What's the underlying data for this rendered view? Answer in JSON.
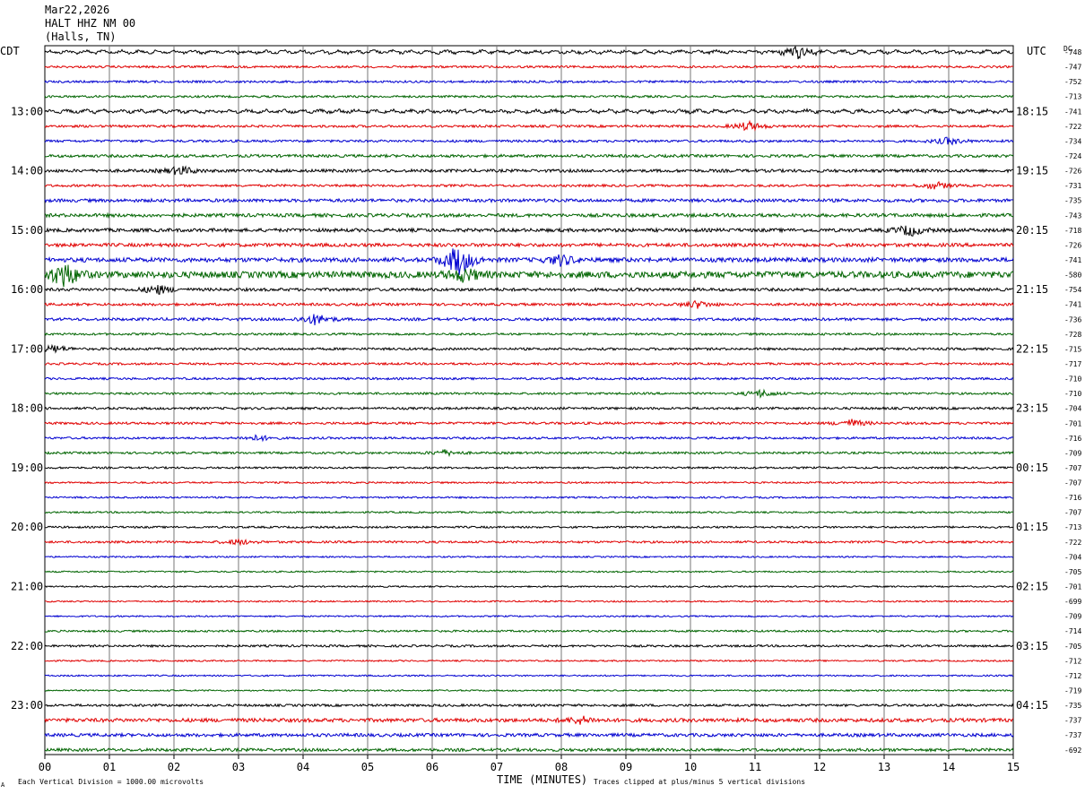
{
  "header": {
    "date": "Mar22,2026",
    "station": "HALT HHZ NM 00",
    "location": "(Halls, TN)"
  },
  "labels": {
    "left_tz": "CDT",
    "right_tz": "UTC",
    "dc": "DC",
    "xlabel": "TIME (MINUTES)",
    "footer_left": "Each Vertical Division = 1000.00 microvolts",
    "footer_right": "Traces clipped at plus/minus 5 vertical divisions",
    "corner_mark": "A"
  },
  "chart_data": {
    "type": "line",
    "title": "HALT HHZ NM 00 (Halls, TN) Mar22,2026",
    "xlabel": "TIME (MINUTES)",
    "x_ticks": [
      "00",
      "01",
      "02",
      "03",
      "04",
      "05",
      "06",
      "07",
      "08",
      "09",
      "10",
      "11",
      "12",
      "13",
      "14",
      "15"
    ],
    "xlim": [
      0,
      15
    ],
    "trace_colors": [
      "#000000",
      "#e00000",
      "#0000d0",
      "#006400"
    ],
    "left_hour_labels": [
      "13:00",
      "14:00",
      "15:00",
      "16:00",
      "17:00",
      "18:00",
      "19:00",
      "20:00",
      "21:00",
      "22:00",
      "23:00"
    ],
    "right_hour_labels": [
      "18:15",
      "19:15",
      "20:15",
      "21:15",
      "22:15",
      "23:15",
      "00:15",
      "01:15",
      "02:15",
      "03:15",
      "04:15"
    ],
    "dc_offsets": [
      "-748",
      "-747",
      "-752",
      "-713",
      "-741",
      "-722",
      "-734",
      "-724",
      "-726",
      "-731",
      "-735",
      "-743",
      "-718",
      "-726",
      "-741",
      "-580",
      "-754",
      "-741",
      "-736",
      "-728",
      "-715",
      "-717",
      "-710",
      "-710",
      "-704",
      "-701",
      "-716",
      "-709",
      "-707",
      "-707",
      "-716",
      "-707",
      "-713",
      "-722",
      "-704",
      "-705",
      "-701",
      "-699",
      "-709",
      "-714",
      "-705",
      "-712",
      "-712",
      "-719",
      "-735",
      "-737",
      "-737",
      "-692"
    ],
    "trace_activity": [
      1.2,
      1.0,
      1.0,
      1.0,
      1.3,
      1.1,
      1.1,
      1.3,
      1.4,
      1.1,
      1.5,
      1.6,
      1.6,
      1.6,
      2.0,
      3.0,
      1.4,
      1.2,
      1.3,
      1.0,
      1.1,
      1.0,
      1.0,
      1.0,
      1.1,
      1.1,
      1.0,
      1.0,
      0.9,
      0.8,
      0.8,
      0.8,
      0.9,
      1.0,
      0.7,
      0.7,
      0.7,
      0.7,
      0.7,
      0.9,
      1.0,
      0.7,
      0.7,
      0.7,
      1.1,
      1.7,
      1.5,
      1.4
    ],
    "bursts": [
      {
        "trace": 0,
        "minute": 11.65,
        "amp": 7
      },
      {
        "trace": 5,
        "minute": 10.9,
        "amp": 5
      },
      {
        "trace": 6,
        "minute": 14.0,
        "amp": 4
      },
      {
        "trace": 8,
        "minute": 2.1,
        "amp": 5
      },
      {
        "trace": 9,
        "minute": 13.8,
        "amp": 4
      },
      {
        "trace": 12,
        "minute": 13.4,
        "amp": 6
      },
      {
        "trace": 14,
        "minute": 6.4,
        "amp": 18
      },
      {
        "trace": 14,
        "minute": 8.0,
        "amp": 6
      },
      {
        "trace": 15,
        "minute": 0.3,
        "amp": 14
      },
      {
        "trace": 15,
        "minute": 6.5,
        "amp": 7
      },
      {
        "trace": 16,
        "minute": 1.75,
        "amp": 5
      },
      {
        "trace": 17,
        "minute": 10.1,
        "amp": 4
      },
      {
        "trace": 18,
        "minute": 4.2,
        "amp": 6
      },
      {
        "trace": 20,
        "minute": 0.15,
        "amp": 4
      },
      {
        "trace": 23,
        "minute": 11.1,
        "amp": 4
      },
      {
        "trace": 25,
        "minute": 12.5,
        "amp": 4
      },
      {
        "trace": 26,
        "minute": 3.3,
        "amp": 3
      },
      {
        "trace": 27,
        "minute": 6.2,
        "amp": 3
      },
      {
        "trace": 33,
        "minute": 3.0,
        "amp": 3
      },
      {
        "trace": 45,
        "minute": 8.3,
        "amp": 4
      }
    ]
  }
}
